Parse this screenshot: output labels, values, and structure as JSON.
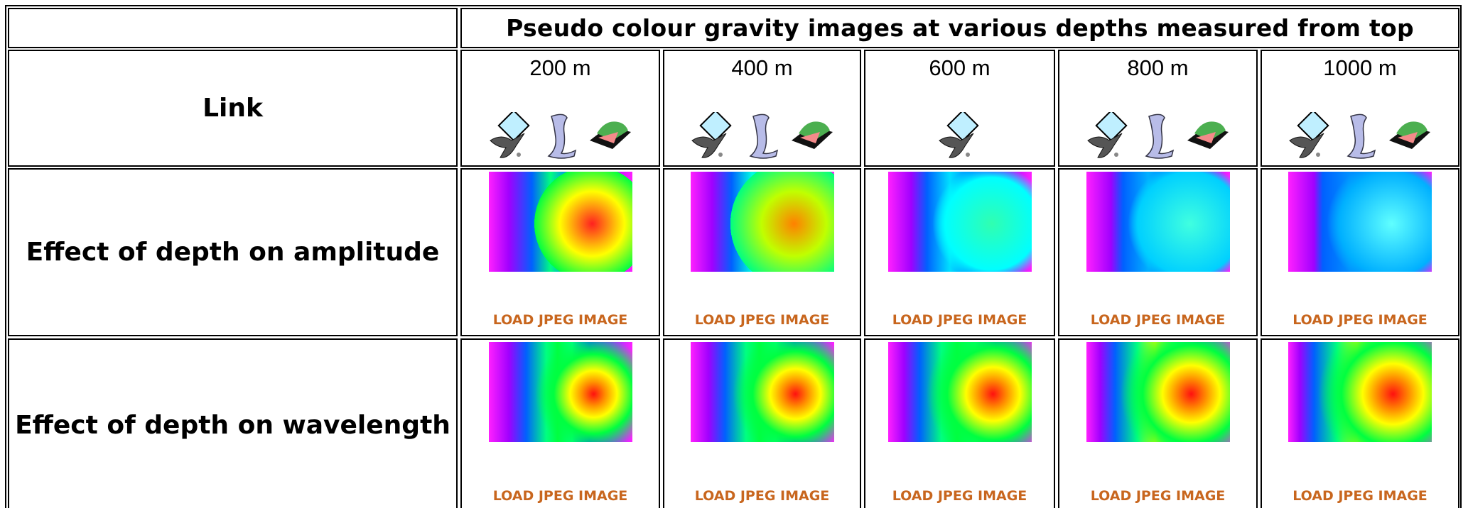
{
  "header": {
    "title": "Pseudo colour gravity images at various depths measured from top"
  },
  "table": {
    "columns": [
      "200 m",
      "400 m",
      "600 m",
      "800 m",
      "1000 m"
    ],
    "rows": [
      {
        "label": "Link"
      },
      {
        "label": "Effect of depth on amplitude",
        "links": [
          "LOAD JPEG IMAGE",
          "LOAD JPEG IMAGE",
          "LOAD JPEG IMAGE",
          "LOAD JPEG IMAGE",
          "LOAD JPEG IMAGE"
        ]
      },
      {
        "label": "Effect of depth on wavelength",
        "links": [
          "LOAD JPEG IMAGE",
          "LOAD JPEG IMAGE",
          "LOAD JPEG IMAGE",
          "LOAD JPEG IMAGE",
          "LOAD JPEG IMAGE"
        ]
      }
    ]
  }
}
